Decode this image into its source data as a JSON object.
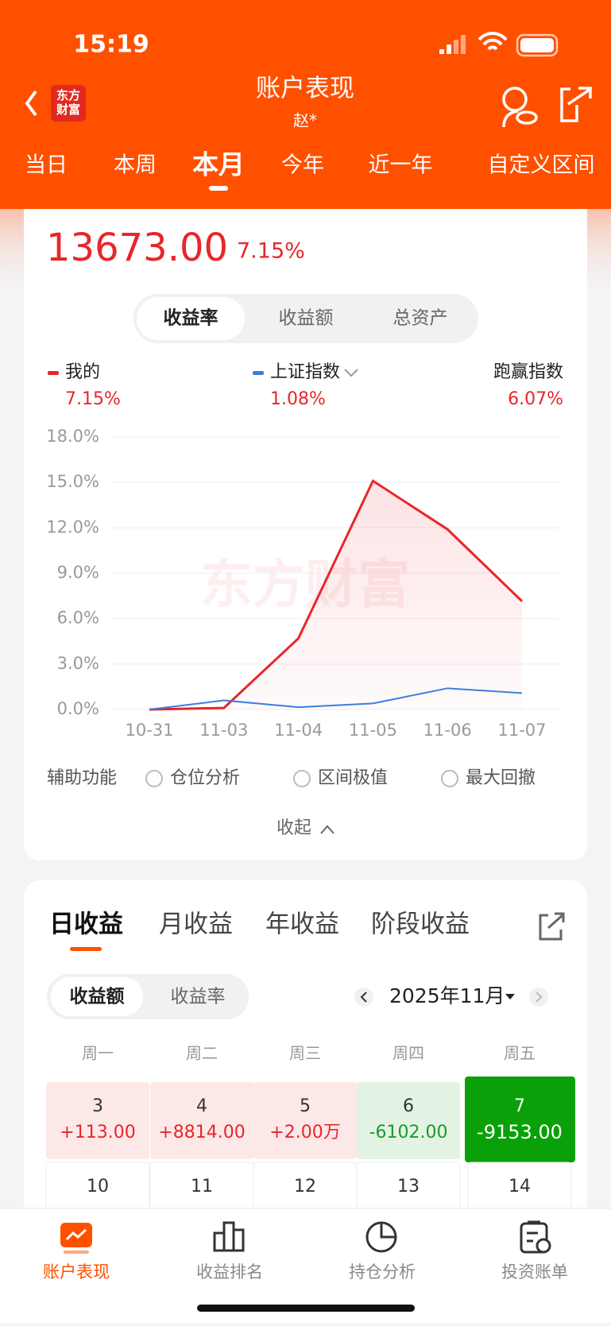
{
  "status_bar": {
    "time": "15:19"
  },
  "header": {
    "logo": "东方\n财富",
    "title": "账户表现",
    "subtitle": "赵*"
  },
  "period_tabs": {
    "items": [
      "当日",
      "本周",
      "本月",
      "今年",
      "近一年",
      "自定义区间"
    ],
    "active": 2
  },
  "summary": {
    "amount": "13673.00",
    "rate": "7.15%"
  },
  "metric_tabs": {
    "items": [
      "收益率",
      "收益额",
      "总资产"
    ],
    "active": 0
  },
  "chart_data": {
    "type": "line",
    "watermark": "东方财富",
    "categories": [
      "10-31",
      "11-03",
      "11-04",
      "11-05",
      "11-06",
      "11-07"
    ],
    "series": [
      {
        "name": "我的",
        "color": "#e8262a",
        "values": [
          0,
          0.1,
          4.7,
          15.1,
          11.9,
          7.15
        ],
        "summary_label": "7.15%"
      },
      {
        "name": "上证指数",
        "color": "#3d7de0",
        "values": [
          0,
          0.6,
          0.15,
          0.4,
          1.4,
          1.08
        ],
        "summary_label": "1.08%"
      }
    ],
    "outperform": {
      "name": "跑赢指数",
      "summary_label": "6.07%"
    },
    "ylim": [
      0,
      18
    ],
    "yticks": [
      {
        "value": 0,
        "label": "0.0%"
      },
      {
        "value": 3,
        "label": "3.0%"
      },
      {
        "value": 6,
        "label": "6.0%"
      },
      {
        "value": 9,
        "label": "9.0%"
      },
      {
        "value": 12,
        "label": "12.0%"
      },
      {
        "value": 15,
        "label": "15.0%"
      },
      {
        "value": 18,
        "label": "18.0%"
      }
    ],
    "grid": true
  },
  "tools": {
    "label": "辅助功能",
    "options": [
      "仓位分析",
      "区间极值",
      "最大回撤"
    ],
    "collapse": "收起"
  },
  "earnings_tabs": {
    "items": [
      "日收益",
      "月收益",
      "年收益",
      "阶段收益"
    ],
    "active": 0
  },
  "earnings_mode": {
    "items": [
      "收益额",
      "收益率"
    ],
    "active": 0
  },
  "month": "2025年11月",
  "calendar": {
    "weekdays": [
      "周一",
      "周二",
      "周三",
      "周四",
      "周五"
    ],
    "rows": [
      [
        {
          "day": "3",
          "amount": "+113.00",
          "kind": "gain"
        },
        {
          "day": "4",
          "amount": "+8814.00",
          "kind": "gain"
        },
        {
          "day": "5",
          "amount": "+2.00万",
          "kind": "gain"
        },
        {
          "day": "6",
          "amount": "-6102.00",
          "kind": "loss"
        },
        {
          "day": "7",
          "amount": "-9153.00",
          "kind": "selected-loss"
        }
      ],
      [
        {
          "day": "10"
        },
        {
          "day": "11"
        },
        {
          "day": "12"
        },
        {
          "day": "13"
        },
        {
          "day": "14"
        }
      ]
    ]
  },
  "bottom_nav": {
    "items": [
      "账户表现",
      "收益排名",
      "持仓分析",
      "投资账单"
    ],
    "active": 0
  }
}
